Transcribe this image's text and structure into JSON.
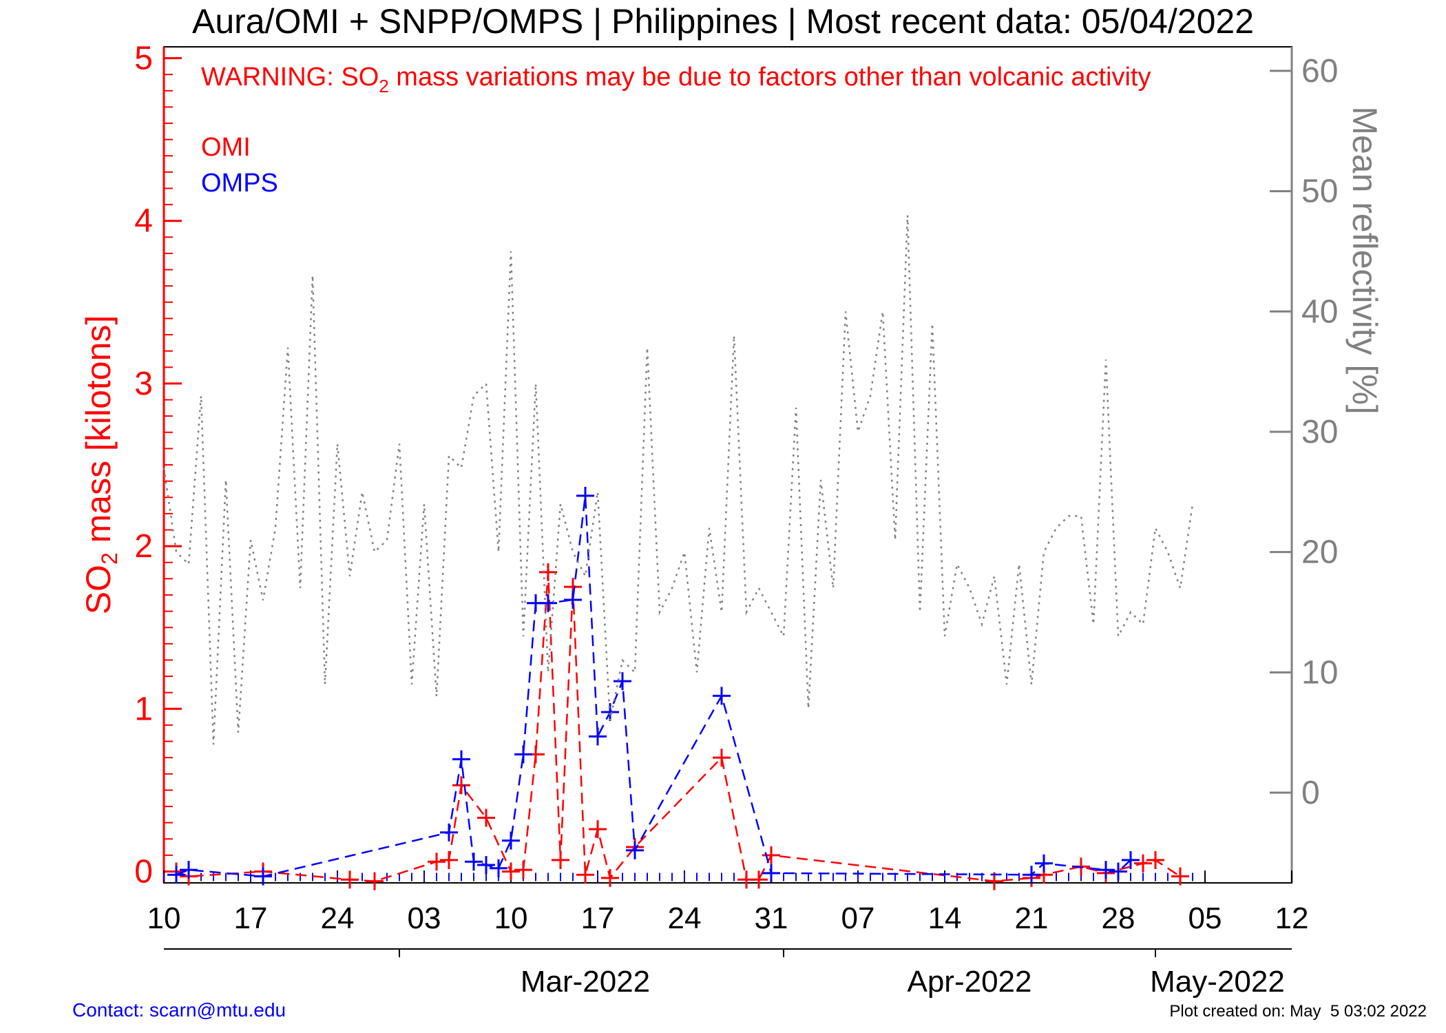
{
  "chart_data": {
    "type": "line",
    "title": "Aura/OMI + SNPP/OMPS | Philippines | Most recent data: 05/04/2022",
    "warning": {
      "prefix": "WARNING: SO",
      "sub": "2",
      "suffix": " mass variations may be due to factors other than volcanic activity"
    },
    "ylabel": {
      "prefix": "SO",
      "sub": "2",
      "suffix": " mass [kilotons]"
    },
    "y2label": "Mean reflectivity [%]",
    "ylim": [
      -0.07,
      5.07
    ],
    "y2lim": [
      -7.5,
      62
    ],
    "yticks": [
      "0",
      "1",
      "2",
      "3",
      "4",
      "5"
    ],
    "y2ticks": [
      "0",
      "10",
      "20",
      "30",
      "40",
      "50",
      "60"
    ],
    "xlim": [
      "2022-02-10",
      "2022-05-12"
    ],
    "xtick_labels": [
      "10",
      "17",
      "24",
      "03",
      "10",
      "17",
      "24",
      "31",
      "07",
      "14",
      "21",
      "28",
      "05",
      "12"
    ],
    "month_labels": [
      "Mar-2022",
      "Apr-2022",
      "May-2022"
    ],
    "grid": false,
    "legend_position": "top-left",
    "colors": {
      "omi": "#ff0000",
      "omps": "#0000ff",
      "reflectivity": "#808080",
      "axis_left": "#ff0000",
      "axis_right": "#808080"
    },
    "series": [
      {
        "name": "OMI",
        "color": "#ff0000",
        "marker": "+",
        "line": "dashed",
        "x": [
          "2022-02-11",
          "2022-02-12",
          "2022-02-18",
          "2022-02-25",
          "2022-02-27",
          "2022-03-04",
          "2022-03-05",
          "2022-03-06",
          "2022-03-08",
          "2022-03-10",
          "2022-03-11",
          "2022-03-12",
          "2022-03-13",
          "2022-03-14",
          "2022-03-15",
          "2022-03-16",
          "2022-03-17",
          "2022-03-18",
          "2022-03-20",
          "2022-03-27",
          "2022-03-29",
          "2022-03-30",
          "2022-03-31",
          "2022-04-18",
          "2022-04-21",
          "2022-04-22",
          "2022-04-25",
          "2022-04-27",
          "2022-04-30",
          "2022-05-01",
          "2022-05-03"
        ],
        "y": [
          0.0,
          -0.03,
          0.0,
          -0.05,
          -0.06,
          0.06,
          0.07,
          0.53,
          0.33,
          0.0,
          0.01,
          0.72,
          1.84,
          0.07,
          1.75,
          -0.02,
          0.26,
          -0.04,
          0.15,
          0.7,
          -0.05,
          -0.05,
          0.1,
          -0.06,
          -0.04,
          -0.02,
          0.03,
          -0.01,
          0.05,
          0.07,
          -0.03
        ]
      },
      {
        "name": "OMPS",
        "color": "#0000ff",
        "marker": "+",
        "line": "dashed",
        "x": [
          "2022-02-11",
          "2022-02-12",
          "2022-02-18",
          "2022-03-05",
          "2022-03-06",
          "2022-03-07",
          "2022-03-08",
          "2022-03-09",
          "2022-03-10",
          "2022-03-11",
          "2022-03-12",
          "2022-03-13",
          "2022-03-15",
          "2022-03-16",
          "2022-03-17",
          "2022-03-18",
          "2022-03-19",
          "2022-03-20",
          "2022-03-27",
          "2022-03-31",
          "2022-04-21",
          "2022-04-22",
          "2022-04-27",
          "2022-04-28",
          "2022-04-29"
        ],
        "y": [
          -0.02,
          0.01,
          -0.03,
          0.24,
          0.69,
          0.06,
          0.04,
          0.02,
          0.19,
          0.72,
          1.65,
          1.65,
          1.67,
          2.31,
          0.83,
          0.98,
          1.17,
          0.13,
          1.08,
          -0.01,
          -0.02,
          0.05,
          0.01,
          0.0,
          0.07
        ]
      },
      {
        "name": "Mean reflectivity",
        "color": "#808080",
        "line": "dotted",
        "axis": "right",
        "x": [
          "2022-02-10",
          "2022-02-11",
          "2022-02-12",
          "2022-02-13",
          "2022-02-14",
          "2022-02-15",
          "2022-02-16",
          "2022-02-17",
          "2022-02-18",
          "2022-02-19",
          "2022-02-20",
          "2022-02-21",
          "2022-02-22",
          "2022-02-23",
          "2022-02-24",
          "2022-02-25",
          "2022-02-26",
          "2022-02-27",
          "2022-02-28",
          "2022-03-01",
          "2022-03-02",
          "2022-03-03",
          "2022-03-04",
          "2022-03-05",
          "2022-03-06",
          "2022-03-07",
          "2022-03-08",
          "2022-03-09",
          "2022-03-10",
          "2022-03-11",
          "2022-03-12",
          "2022-03-13",
          "2022-03-14",
          "2022-03-15",
          "2022-03-16",
          "2022-03-17",
          "2022-03-18",
          "2022-03-19",
          "2022-03-20",
          "2022-03-21",
          "2022-03-22",
          "2022-03-23",
          "2022-03-24",
          "2022-03-25",
          "2022-03-26",
          "2022-03-27",
          "2022-03-28",
          "2022-03-29",
          "2022-03-30",
          "2022-03-31",
          "2022-04-01",
          "2022-04-02",
          "2022-04-03",
          "2022-04-04",
          "2022-04-05",
          "2022-04-06",
          "2022-04-07",
          "2022-04-08",
          "2022-04-09",
          "2022-04-10",
          "2022-04-11",
          "2022-04-12",
          "2022-04-13",
          "2022-04-14",
          "2022-04-15",
          "2022-04-16",
          "2022-04-17",
          "2022-04-18",
          "2022-04-19",
          "2022-04-20",
          "2022-04-21",
          "2022-04-22",
          "2022-04-23",
          "2022-04-24",
          "2022-04-25",
          "2022-04-26",
          "2022-04-27",
          "2022-04-28",
          "2022-04-29",
          "2022-04-30",
          "2022-05-01",
          "2022-05-02",
          "2022-05-03",
          "2022-05-04"
        ],
        "y": [
          27,
          20,
          19,
          33,
          4,
          26,
          5,
          21,
          16,
          22,
          37,
          17,
          43,
          9,
          29,
          18,
          25,
          20,
          21,
          29,
          9,
          24,
          8,
          28,
          27,
          33,
          34,
          20,
          45,
          13,
          34,
          10,
          24,
          20,
          18,
          25,
          6,
          11,
          10,
          37,
          15,
          17,
          20,
          10,
          22,
          15,
          38,
          15,
          17,
          15,
          13,
          32,
          7,
          26,
          17,
          40,
          30,
          33,
          40,
          21,
          48,
          15,
          39,
          13,
          19,
          17,
          14,
          18,
          9,
          19,
          9,
          20,
          22,
          23,
          23,
          14,
          36,
          13,
          15,
          14,
          22,
          20,
          17,
          24
        ]
      }
    ]
  },
  "footer": {
    "contact": "Contact: scarn@mtu.edu",
    "created": "Plot created on: May  5 03:02 2022"
  }
}
